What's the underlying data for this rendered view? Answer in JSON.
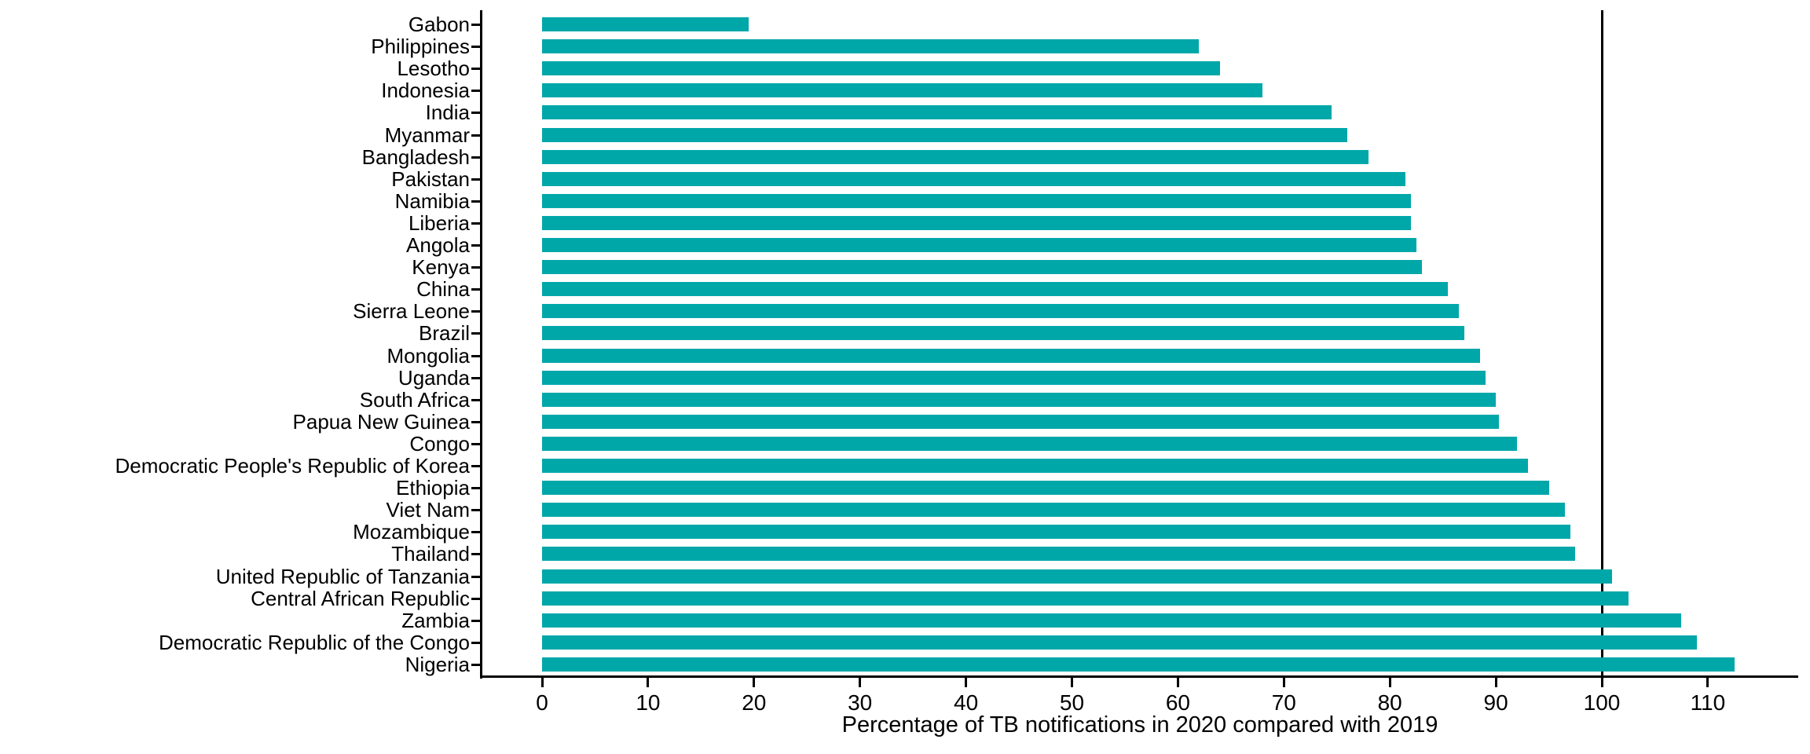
{
  "chart_data": {
    "type": "bar",
    "orientation": "horizontal",
    "title": "",
    "xlabel": "Percentage of TB notifications in 2020 compared with 2019",
    "ylabel": "",
    "xlim": [
      -5.65,
      118.65
    ],
    "x_ticks": [
      0,
      10,
      20,
      30,
      40,
      50,
      60,
      70,
      80,
      90,
      100,
      110
    ],
    "reference_line_x": 100,
    "grid": false,
    "legend": false,
    "bar_color": "#00A7A9",
    "axis_color": "#000000",
    "categories": [
      "Gabon",
      "Philippines",
      "Lesotho",
      "Indonesia",
      "India",
      "Myanmar",
      "Bangladesh",
      "Pakistan",
      "Namibia",
      "Liberia",
      "Angola",
      "Kenya",
      "China",
      "Sierra Leone",
      "Brazil",
      "Mongolia",
      "Uganda",
      "South Africa",
      "Papua New Guinea",
      "Congo",
      "Democratic People's Republic of Korea",
      "Ethiopia",
      "Viet Nam",
      "Mozambique",
      "Thailand",
      "United Republic of Tanzania",
      "Central African Republic",
      "Zambia",
      "Democratic Republic of the Congo",
      "Nigeria"
    ],
    "values": [
      19.5,
      62,
      64,
      68,
      74.5,
      76,
      78,
      81.5,
      82,
      82,
      82.5,
      83,
      85.5,
      86.5,
      87,
      88.5,
      89,
      90,
      90.3,
      92,
      93,
      95,
      96.5,
      97,
      97.5,
      101,
      102.5,
      107.5,
      109,
      112.5
    ]
  }
}
